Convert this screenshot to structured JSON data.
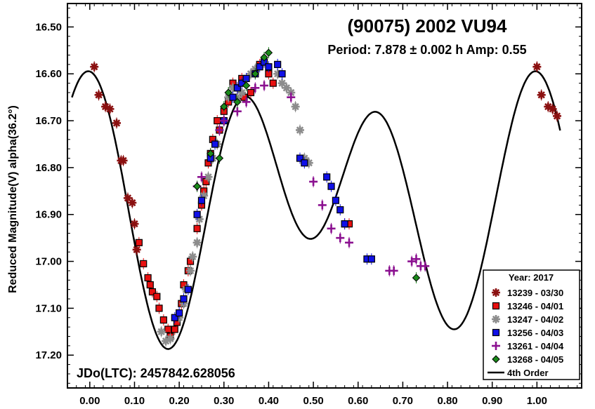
{
  "chart_data": {
    "type": "scatter",
    "title": "(90075) 2002 VU94",
    "subtitle": "Period: 7.878 ± 0.002 h   Amp: 0.55",
    "ylabel": "Reduced Magnitude(V) alpha(36.2°)",
    "xlabel": "",
    "annotation": "JDo(LTC): 2457842.628056",
    "xlim": [
      -0.05,
      1.1
    ],
    "ylim": [
      16.45,
      17.27
    ],
    "y_inverted": true,
    "x_ticks": [
      "0.00",
      "0.10",
      "0.20",
      "0.30",
      "0.40",
      "0.50",
      "0.60",
      "0.70",
      "0.80",
      "0.90",
      "1.00"
    ],
    "y_ticks": [
      "16.50",
      "16.60",
      "16.70",
      "16.80",
      "16.90",
      "17.00",
      "17.10",
      "17.20"
    ],
    "grid": false,
    "legend": {
      "position": "bottom-right",
      "title": "Year: 2017",
      "fit_label": "4th Order"
    },
    "series": [
      {
        "name": "13239 - 03/30",
        "marker": "asterisk",
        "color": "#8b1010",
        "points": [
          [
            0.01,
            16.585
          ],
          [
            0.02,
            16.645
          ],
          [
            0.035,
            16.67
          ],
          [
            0.045,
            16.675
          ],
          [
            0.06,
            16.705
          ],
          [
            0.07,
            16.785
          ],
          [
            0.075,
            16.785
          ],
          [
            0.085,
            16.865
          ],
          [
            0.095,
            16.875
          ],
          [
            0.1,
            16.92
          ],
          [
            0.105,
            16.975
          ],
          [
            1.0,
            16.585
          ],
          [
            1.01,
            16.645
          ],
          [
            1.025,
            16.67
          ],
          [
            1.035,
            16.675
          ],
          [
            1.045,
            16.69
          ]
        ]
      },
      {
        "name": "13246 - 04/01",
        "marker": "square",
        "color": "#e81010",
        "points": [
          [
            0.11,
            16.96
          ],
          [
            0.12,
            17.005
          ],
          [
            0.13,
            17.035
          ],
          [
            0.135,
            17.05
          ],
          [
            0.14,
            17.065
          ],
          [
            0.15,
            17.075
          ],
          [
            0.155,
            17.1
          ],
          [
            0.165,
            17.125
          ],
          [
            0.175,
            17.145
          ],
          [
            0.18,
            17.16
          ],
          [
            0.19,
            17.145
          ],
          [
            0.195,
            17.13
          ],
          [
            0.205,
            17.09
          ],
          [
            0.21,
            17.05
          ],
          [
            0.22,
            17.02
          ],
          [
            0.225,
            17.0
          ],
          [
            0.24,
            16.93
          ],
          [
            0.25,
            16.88
          ],
          [
            0.255,
            16.85
          ],
          [
            0.26,
            16.83
          ],
          [
            0.265,
            16.79
          ],
          [
            0.27,
            16.77
          ],
          [
            0.275,
            16.74
          ],
          [
            0.285,
            16.7
          ],
          [
            0.29,
            16.72
          ],
          [
            0.3,
            16.68
          ],
          [
            0.31,
            16.66
          ],
          [
            0.32,
            16.62
          ],
          [
            0.33,
            16.63
          ],
          [
            0.34,
            16.61
          ],
          [
            0.345,
            16.65
          ],
          [
            0.36,
            16.64
          ],
          [
            0.38,
            16.58
          ],
          [
            0.4,
            16.6
          ],
          [
            0.41,
            16.62
          ],
          [
            0.57,
            16.92
          ],
          [
            0.58,
            16.92
          ]
        ]
      },
      {
        "name": "13247 - 04/02",
        "marker": "asterisk",
        "color": "#8c8c8c",
        "points": [
          [
            0.16,
            17.15
          ],
          [
            0.17,
            17.17
          ],
          [
            0.18,
            17.165
          ],
          [
            0.2,
            17.12
          ],
          [
            0.21,
            17.09
          ],
          [
            0.215,
            17.06
          ],
          [
            0.225,
            17.02
          ],
          [
            0.23,
            16.99
          ],
          [
            0.24,
            16.96
          ],
          [
            0.245,
            16.91
          ],
          [
            0.255,
            16.86
          ],
          [
            0.265,
            16.82
          ],
          [
            0.275,
            16.78
          ],
          [
            0.285,
            16.75
          ],
          [
            0.3,
            16.7
          ],
          [
            0.31,
            16.65
          ],
          [
            0.32,
            16.63
          ],
          [
            0.33,
            16.65
          ],
          [
            0.34,
            16.64
          ],
          [
            0.36,
            16.6
          ],
          [
            0.37,
            16.59
          ],
          [
            0.42,
            16.6
          ],
          [
            0.43,
            16.62
          ],
          [
            0.44,
            16.63
          ],
          [
            0.45,
            16.64
          ],
          [
            0.46,
            16.67
          ],
          [
            0.47,
            16.72
          ],
          [
            0.48,
            16.78
          ],
          [
            0.49,
            16.79
          ]
        ]
      },
      {
        "name": "13256 - 04/03",
        "marker": "square",
        "color": "#1010e8",
        "points": [
          [
            0.19,
            17.12
          ],
          [
            0.2,
            17.11
          ],
          [
            0.21,
            17.08
          ],
          [
            0.22,
            17.06
          ],
          [
            0.24,
            16.9
          ],
          [
            0.25,
            16.87
          ],
          [
            0.27,
            16.78
          ],
          [
            0.28,
            16.75
          ],
          [
            0.3,
            16.7
          ],
          [
            0.32,
            16.65
          ],
          [
            0.33,
            16.63
          ],
          [
            0.34,
            16.62
          ],
          [
            0.35,
            16.61
          ],
          [
            0.37,
            16.6
          ],
          [
            0.38,
            16.585
          ],
          [
            0.39,
            16.575
          ],
          [
            0.4,
            16.585
          ],
          [
            0.42,
            16.58
          ],
          [
            0.43,
            16.6
          ],
          [
            0.47,
            16.78
          ],
          [
            0.48,
            16.79
          ],
          [
            0.53,
            16.82
          ],
          [
            0.54,
            16.84
          ],
          [
            0.55,
            16.87
          ],
          [
            0.56,
            16.89
          ],
          [
            0.57,
            16.92
          ],
          [
            0.62,
            16.995
          ],
          [
            0.63,
            16.995
          ]
        ]
      },
      {
        "name": "13261 - 04/04",
        "marker": "plus",
        "color": "#8b1090",
        "points": [
          [
            0.24,
            16.84
          ],
          [
            0.25,
            16.82
          ],
          [
            0.29,
            16.72
          ],
          [
            0.3,
            16.7
          ],
          [
            0.33,
            16.68
          ],
          [
            0.35,
            16.66
          ],
          [
            0.37,
            16.63
          ],
          [
            0.39,
            16.625
          ],
          [
            0.45,
            16.65
          ],
          [
            0.5,
            16.83
          ],
          [
            0.52,
            16.88
          ],
          [
            0.54,
            16.93
          ],
          [
            0.56,
            16.95
          ],
          [
            0.58,
            16.96
          ],
          [
            0.67,
            17.02
          ],
          [
            0.68,
            17.02
          ],
          [
            0.72,
            17.0
          ],
          [
            0.73,
            16.995
          ],
          [
            0.74,
            17.01
          ],
          [
            0.75,
            17.01
          ]
        ]
      },
      {
        "name": "13268 - 04/05",
        "marker": "diamond",
        "color": "#1a8a1a",
        "points": [
          [
            0.24,
            16.84
          ],
          [
            0.27,
            16.77
          ],
          [
            0.29,
            16.78
          ],
          [
            0.3,
            16.67
          ],
          [
            0.31,
            16.64
          ],
          [
            0.33,
            16.66
          ],
          [
            0.35,
            16.625
          ],
          [
            0.37,
            16.6
          ],
          [
            0.39,
            16.565
          ],
          [
            0.4,
            16.555
          ],
          [
            0.73,
            17.035
          ]
        ]
      }
    ],
    "fit": {
      "name": "4th Order",
      "mean": 16.871,
      "a": [
        0.0398,
        -0.1059,
        -0.2178,
        0.0078
      ],
      "b": [
        -0.0001,
        0.0186,
        0.0186,
        -0.0116
      ]
    }
  }
}
